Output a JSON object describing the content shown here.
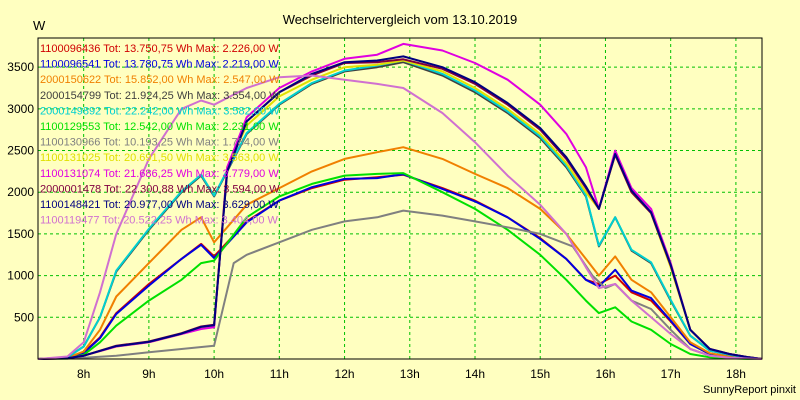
{
  "chart_data": {
    "type": "line",
    "title": "Wechselrichtervergleich vom 13.10.2019",
    "ylabel": "W",
    "xlabel": "",
    "footer": "SunnyReport pinxit",
    "grid": true,
    "legend_position": "top-left",
    "ylim": [
      0,
      3850
    ],
    "xlim": [
      7.3,
      18.4
    ],
    "x_tick_labels": [
      "8h",
      "9h",
      "10h",
      "11h",
      "12h",
      "13h",
      "14h",
      "15h",
      "16h",
      "17h",
      "18h"
    ],
    "x_tick_values": [
      8,
      9,
      10,
      11,
      12,
      13,
      14,
      15,
      16,
      17,
      18
    ],
    "y_tick_labels": [
      "500",
      "1000",
      "1500",
      "2000",
      "2500",
      "3000",
      "3500"
    ],
    "y_tick_values": [
      500,
      1000,
      1500,
      2000,
      2500,
      3000,
      3500
    ],
    "series": [
      {
        "name": "1100096436 Tot: 13.750,75 Wh Max: 2.226,00 W",
        "color": "#d00000",
        "x": [
          7.3,
          7.75,
          8,
          8.25,
          8.5,
          9,
          9.5,
          9.8,
          10,
          10.5,
          11,
          11.5,
          12,
          12.5,
          12.9,
          13.5,
          14,
          14.5,
          15,
          15.4,
          15.7,
          15.9,
          16.15,
          16.4,
          16.7,
          17,
          17.3,
          17.6,
          17.9,
          18.2,
          18.4
        ],
        "y": [
          0,
          10,
          80,
          260,
          550,
          900,
          1200,
          1380,
          1230,
          1650,
          1900,
          2050,
          2150,
          2180,
          2210,
          2050,
          1900,
          1700,
          1450,
          1200,
          950,
          900,
          1000,
          800,
          700,
          450,
          180,
          60,
          30,
          10,
          0
        ]
      },
      {
        "name": "1100096541 Tot: 13.780,75 Wh Max: 2.219,00 W",
        "color": "#0000e0",
        "x": [
          7.3,
          7.75,
          8,
          8.25,
          8.5,
          9,
          9.5,
          9.8,
          10,
          10.5,
          11,
          11.5,
          12,
          12.5,
          12.9,
          13.5,
          14,
          14.5,
          15,
          15.4,
          15.7,
          15.9,
          16.15,
          16.4,
          16.7,
          17,
          17.3,
          17.6,
          17.9,
          18.2,
          18.4
        ],
        "y": [
          0,
          10,
          70,
          250,
          540,
          880,
          1200,
          1370,
          1210,
          1640,
          1900,
          2060,
          2160,
          2170,
          2215,
          2040,
          1890,
          1700,
          1440,
          1200,
          950,
          870,
          1070,
          820,
          730,
          460,
          180,
          60,
          30,
          10,
          0
        ]
      },
      {
        "name": "2000150622 Tot: 15.852,00 Wh Max: 2.547,00 W",
        "color": "#f08000",
        "x": [
          7.3,
          7.75,
          8,
          8.25,
          8.5,
          9,
          9.5,
          9.8,
          10,
          10.5,
          11,
          11.5,
          12,
          12.5,
          12.9,
          13.5,
          14,
          14.5,
          15,
          15.4,
          15.7,
          15.9,
          16.15,
          16.4,
          16.7,
          17,
          17.3,
          17.6,
          17.9,
          18.2,
          18.4
        ],
        "y": [
          0,
          15,
          90,
          350,
          750,
          1150,
          1550,
          1700,
          1400,
          1850,
          2050,
          2250,
          2400,
          2480,
          2540,
          2400,
          2220,
          2050,
          1800,
          1500,
          1200,
          1000,
          1230,
          950,
          800,
          500,
          200,
          70,
          30,
          10,
          0
        ]
      },
      {
        "name": "2000154799 Tot: 21.924,25 Wh Max: 3.554,00 W",
        "color": "#404040",
        "x": [
          7.3,
          7.75,
          8,
          8.25,
          8.5,
          9,
          9.5,
          9.8,
          10,
          10.5,
          11,
          11.5,
          12,
          12.5,
          12.9,
          13.5,
          14,
          14.5,
          15,
          15.4,
          15.7,
          15.9,
          16.15,
          16.4,
          16.7,
          17,
          17.3,
          17.6,
          17.9,
          18.2,
          18.4
        ],
        "y": [
          0,
          20,
          150,
          500,
          1050,
          1550,
          2000,
          2200,
          1950,
          2700,
          3050,
          3300,
          3450,
          3500,
          3560,
          3400,
          3200,
          2950,
          2650,
          2300,
          1950,
          1350,
          1700,
          1300,
          1150,
          700,
          280,
          100,
          50,
          15,
          0
        ]
      },
      {
        "name": "2000149892 Tot: 22.242,00 Wh Max: 3.582,00 W",
        "color": "#00d0d0",
        "x": [
          7.3,
          7.75,
          8,
          8.25,
          8.5,
          9,
          9.5,
          9.8,
          10,
          10.5,
          11,
          11.5,
          12,
          12.5,
          12.9,
          13.5,
          14,
          14.5,
          15,
          15.4,
          15.7,
          15.9,
          16.15,
          16.4,
          16.7,
          17,
          17.3,
          17.6,
          17.9,
          18.2,
          18.4
        ],
        "y": [
          0,
          20,
          150,
          500,
          1060,
          1560,
          2010,
          2210,
          1960,
          2710,
          3060,
          3310,
          3460,
          3520,
          3580,
          3420,
          3220,
          2970,
          2670,
          2320,
          1960,
          1360,
          1700,
          1310,
          1160,
          710,
          280,
          100,
          50,
          15,
          0
        ]
      },
      {
        "name": "1100129553 Tot: 12.542,00 Wh Max: 2.231,00 W",
        "color": "#00e000",
        "x": [
          7.3,
          7.75,
          8,
          8.25,
          8.5,
          9,
          9.5,
          9.8,
          10,
          10.5,
          11,
          11.5,
          12,
          12.5,
          12.9,
          13.5,
          14,
          14.5,
          15,
          15.4,
          15.7,
          15.9,
          16.15,
          16.4,
          16.7,
          17,
          17.3,
          17.6,
          17.9,
          18.2,
          18.4
        ],
        "y": [
          0,
          5,
          50,
          200,
          400,
          700,
          950,
          1150,
          1180,
          1700,
          1950,
          2100,
          2200,
          2220,
          2230,
          2000,
          1800,
          1550,
          1250,
          950,
          700,
          550,
          620,
          450,
          350,
          180,
          60,
          20,
          10,
          0,
          0
        ]
      },
      {
        "name": "1100130966 Tot: 10.193,25 Wh Max: 1.784,00 W",
        "color": "#808080",
        "x": [
          7.3,
          7.75,
          8,
          8.5,
          9,
          9.5,
          10,
          10.3,
          10.5,
          11,
          11.5,
          12,
          12.5,
          12.9,
          13.5,
          14,
          14.5,
          15,
          15.5,
          15.8,
          16,
          16.15,
          16.4,
          16.7,
          17,
          17.3,
          17.6,
          17.9,
          18.2,
          18.4
        ],
        "y": [
          0,
          5,
          15,
          40,
          80,
          120,
          160,
          1150,
          1250,
          1400,
          1550,
          1650,
          1700,
          1780,
          1720,
          1650,
          1580,
          1500,
          1350,
          1000,
          850,
          900,
          700,
          600,
          350,
          120,
          40,
          15,
          5,
          0
        ]
      },
      {
        "name": "1100131025 Tot: 20.691,50 Wh Max: 3.563,00 W",
        "color": "#e0e000",
        "x": [
          7.3,
          7.75,
          8,
          8.5,
          9,
          9.5,
          9.8,
          10,
          10.2,
          10.5,
          11,
          11.5,
          12,
          12.5,
          12.9,
          13.5,
          14,
          14.5,
          15,
          15.4,
          15.7,
          15.9,
          16.15,
          16.4,
          16.7,
          17,
          17.3,
          17.6,
          17.9,
          18.2,
          18.4
        ],
        "y": [
          0,
          10,
          40,
          150,
          200,
          300,
          380,
          400,
          2300,
          2800,
          3150,
          3350,
          3500,
          3530,
          3580,
          3450,
          3250,
          3000,
          2700,
          2350,
          2000,
          1800,
          2450,
          2000,
          1750,
          1100,
          350,
          120,
          60,
          20,
          0
        ]
      },
      {
        "name": "1100131074 Tot: 21.686,25 Wh Max: 3.779,00 W",
        "color": "#e000e0",
        "x": [
          7.3,
          7.75,
          8,
          8.5,
          9,
          9.5,
          9.8,
          10,
          10.2,
          10.5,
          11,
          11.5,
          12,
          12.5,
          12.9,
          13.5,
          14,
          14.5,
          15,
          15.4,
          15.7,
          15.9,
          16.15,
          16.4,
          16.7,
          17,
          17.3,
          17.6,
          17.9,
          18.2,
          18.4
        ],
        "y": [
          0,
          10,
          40,
          150,
          200,
          300,
          360,
          380,
          2300,
          2900,
          3250,
          3450,
          3600,
          3650,
          3779,
          3700,
          3550,
          3350,
          3050,
          2700,
          2300,
          1800,
          2500,
          2050,
          1800,
          1150,
          350,
          120,
          60,
          20,
          0
        ]
      },
      {
        "name": "2000001478 Tot: 22.300,88 Wh Max: 3.594,00 W",
        "color": "#800040",
        "x": [
          7.3,
          7.75,
          8,
          8.5,
          9,
          9.5,
          9.8,
          10,
          10.2,
          10.5,
          11,
          11.5,
          12,
          12.5,
          12.9,
          13.5,
          14,
          14.5,
          15,
          15.4,
          15.7,
          15.9,
          16.15,
          16.4,
          16.7,
          17,
          17.3,
          17.6,
          17.9,
          18.2,
          18.4
        ],
        "y": [
          0,
          10,
          40,
          160,
          210,
          310,
          390,
          410,
          2250,
          2850,
          3200,
          3400,
          3550,
          3560,
          3594,
          3480,
          3300,
          3050,
          2750,
          2400,
          2050,
          1800,
          2450,
          2000,
          1750,
          1120,
          350,
          120,
          60,
          20,
          0
        ]
      },
      {
        "name": "1100148421 Tot: 20.977,00 Wh Max: 3.629,00 W",
        "color": "#000080",
        "x": [
          7.3,
          7.75,
          8,
          8.5,
          9,
          9.5,
          9.8,
          10,
          10.2,
          10.5,
          11,
          11.5,
          12,
          12.5,
          12.9,
          13.5,
          14,
          14.5,
          15,
          15.4,
          15.7,
          15.9,
          16.15,
          16.4,
          16.7,
          17,
          17.3,
          17.6,
          17.9,
          18.2,
          18.4
        ],
        "y": [
          0,
          10,
          40,
          155,
          205,
          305,
          385,
          405,
          2250,
          2850,
          3200,
          3420,
          3560,
          3580,
          3629,
          3500,
          3320,
          3070,
          2770,
          2420,
          2070,
          1800,
          2460,
          2020,
          1760,
          1130,
          350,
          120,
          60,
          20,
          0
        ]
      },
      {
        "name": "1100119477 Tot: 20.522,25 Wh Max: 3.404,00 W",
        "color": "#d070d0",
        "x": [
          7.3,
          7.75,
          8,
          8.25,
          8.5,
          9,
          9.5,
          9.8,
          10,
          10.5,
          11,
          11.5,
          12,
          12.5,
          12.9,
          13.5,
          14,
          14.5,
          15,
          15.4,
          15.7,
          15.9,
          16.15,
          16.4,
          16.7,
          17,
          17.3,
          17.6,
          17.9,
          18.2,
          18.4
        ],
        "y": [
          0,
          30,
          200,
          800,
          1500,
          2400,
          3000,
          3100,
          3050,
          3250,
          3380,
          3400,
          3350,
          3300,
          3250,
          2950,
          2600,
          2200,
          1850,
          1500,
          1100,
          850,
          900,
          700,
          500,
          300,
          120,
          40,
          15,
          5,
          0
        ]
      }
    ]
  }
}
